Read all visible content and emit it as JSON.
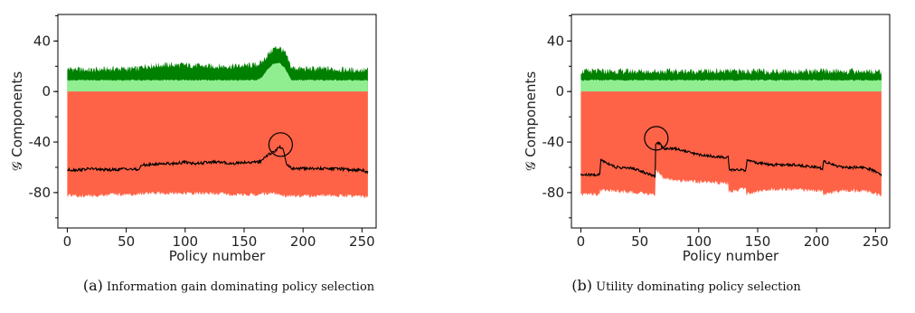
{
  "chart_data": [
    {
      "type": "area",
      "caption_letter": "(a)",
      "caption_text": "Information gain dominating policy selection",
      "xlabel": "Policy number",
      "ylabel": "𝒢 Components",
      "xlim": [
        -8,
        262
      ],
      "ylim": [
        -108,
        61
      ],
      "xticks": [
        0,
        50,
        100,
        150,
        200,
        250
      ],
      "yticks": [
        40,
        0,
        -40,
        -80
      ],
      "ytick_labels": [
        "40",
        "0",
        "-40",
        "-80"
      ],
      "grid": false,
      "series": [
        {
          "role": "upper-dark-green",
          "color": "#008000",
          "x": [
            0,
            20,
            40,
            60,
            64,
            80,
            100,
            120,
            140,
            160,
            165,
            170,
            175,
            180,
            185,
            190,
            200,
            220,
            240,
            255
          ],
          "values": [
            18,
            17,
            18,
            18,
            20,
            21,
            21,
            20,
            20,
            21,
            23,
            29,
            34,
            35,
            30,
            19,
            18,
            18,
            17,
            17
          ]
        },
        {
          "role": "upper-light-green",
          "color": "#90ee90",
          "x": [
            0,
            20,
            40,
            60,
            64,
            80,
            100,
            120,
            140,
            160,
            165,
            170,
            175,
            180,
            185,
            190,
            200,
            220,
            240,
            255
          ],
          "values": [
            9,
            9,
            9,
            9,
            9,
            9,
            9,
            9,
            9,
            9,
            11,
            18,
            22,
            23,
            18,
            9,
            9,
            9,
            9,
            9
          ]
        },
        {
          "role": "lower-red",
          "color": "#ff6347",
          "x": [
            0,
            20,
            40,
            60,
            64,
            80,
            100,
            120,
            140,
            160,
            165,
            170,
            175,
            180,
            185,
            190,
            200,
            220,
            240,
            255
          ],
          "values": [
            -81,
            -81,
            -80,
            -80,
            -79,
            -79,
            -79,
            -79,
            -80,
            -80,
            -80,
            -79,
            -79,
            -80,
            -81,
            -81,
            -81,
            -81,
            -81,
            -82
          ]
        },
        {
          "role": "total-line",
          "color": "#000000",
          "x": [
            0,
            10,
            20,
            30,
            40,
            50,
            60,
            64,
            70,
            80,
            90,
            100,
            110,
            120,
            130,
            140,
            150,
            160,
            165,
            170,
            175,
            180,
            183,
            186,
            190,
            200,
            210,
            220,
            230,
            240,
            250,
            255
          ],
          "values": [
            -62,
            -62,
            -61,
            -62,
            -62,
            -61,
            -62,
            -58,
            -58,
            -57,
            -57,
            -56,
            -57,
            -56,
            -56,
            -57,
            -56,
            -56,
            -55,
            -50,
            -48,
            -44,
            -45,
            -57,
            -61,
            -61,
            -61,
            -61,
            -61,
            -62,
            -62,
            -64
          ]
        }
      ],
      "annotation": {
        "shape": "circle",
        "x": 181,
        "y": -42
      }
    },
    {
      "type": "area",
      "caption_letter": "(b)",
      "caption_text": "Utility dominating policy selection",
      "xlabel": "Policy number",
      "ylabel": "𝒢 Components",
      "xlim": [
        -8,
        262
      ],
      "ylim": [
        -108,
        61
      ],
      "xticks": [
        0,
        50,
        100,
        150,
        200,
        250
      ],
      "yticks": [
        40,
        0,
        -40,
        -80
      ],
      "ytick_labels": [
        "40",
        "0",
        "-40",
        "-80"
      ],
      "grid": false,
      "series": [
        {
          "role": "upper-dark-green",
          "color": "#008000",
          "x": [
            0,
            50,
            100,
            150,
            200,
            255
          ],
          "values": [
            16,
            16,
            16,
            16,
            16,
            16
          ]
        },
        {
          "role": "upper-light-green",
          "color": "#90ee90",
          "x": [
            0,
            50,
            100,
            150,
            200,
            255
          ],
          "values": [
            9,
            9,
            9,
            9,
            9,
            9
          ]
        },
        {
          "role": "lower-red",
          "color": "#ff6347",
          "x": [
            0,
            16,
            16,
            63,
            63,
            70,
            80,
            100,
            125,
            125,
            140,
            140,
            160,
            180,
            205,
            205,
            220,
            240,
            255
          ],
          "values": [
            -80,
            -80,
            -76,
            -80,
            -60,
            -67,
            -69,
            -70,
            -71,
            -78,
            -75,
            -80,
            -76,
            -76,
            -77,
            -80,
            -77,
            -77,
            -81
          ]
        },
        {
          "role": "total-line",
          "color": "#000000",
          "x": [
            0,
            10,
            16,
            17,
            30,
            45,
            60,
            63,
            63.5,
            66,
            70,
            80,
            100,
            120,
            125,
            126,
            140,
            141,
            160,
            180,
            200,
            205,
            206,
            220,
            240,
            250,
            255
          ],
          "values": [
            -66,
            -66,
            -66,
            -54,
            -60,
            -61,
            -66,
            -68,
            -42,
            -40,
            -45,
            -45,
            -50,
            -52,
            -52,
            -62,
            -62,
            -55,
            -58,
            -58,
            -60,
            -61,
            -55,
            -60,
            -60,
            -63,
            -66
          ]
        }
      ],
      "annotation": {
        "shape": "circle",
        "x": 64,
        "y": -37
      }
    }
  ]
}
